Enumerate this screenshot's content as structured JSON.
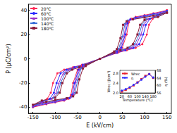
{
  "chart_data": [
    {
      "type": "line",
      "xlabel": "E (kV/cm)",
      "ylabel": "P (μC/cm²)",
      "xlim": [
        -160,
        160
      ],
      "ylim": [
        -45,
        45
      ],
      "xticks": [
        -150,
        -100,
        -50,
        0,
        50,
        100,
        150
      ],
      "yticks": [
        -40,
        -20,
        0,
        20,
        40
      ],
      "grid": false,
      "legend": "top-left",
      "series": [
        {
          "name": "20℃",
          "color": "#ff2a55",
          "marker": "circle",
          "x": [
            150,
            120,
            100,
            80,
            70,
            65,
            60,
            50,
            40,
            0,
            -40,
            -60,
            -80,
            -95,
            -105,
            -110,
            -118,
            -130,
            -150,
            -120,
            -100,
            -80,
            -70,
            -65,
            -60,
            -50,
            -40,
            0,
            40,
            60,
            80,
            95,
            105,
            110,
            118,
            130,
            150
          ],
          "values": [
            40,
            37.5,
            36,
            34.5,
            33,
            30,
            20,
            9,
            6,
            0,
            -5,
            -7,
            -9,
            -12,
            -20,
            -28,
            -33,
            -36,
            -40,
            -37.5,
            -36,
            -34.5,
            -33,
            -30,
            -20,
            -9,
            -6,
            0,
            5,
            7,
            9,
            12,
            20,
            28,
            33,
            36,
            40
          ]
        },
        {
          "name": "60℃",
          "color": "#2a2aff",
          "marker": "circle",
          "x": [
            150,
            120,
            100,
            80,
            68,
            62,
            57,
            48,
            38,
            0,
            -38,
            -57,
            -75,
            -88,
            -97,
            -103,
            -112,
            -130,
            -150,
            -120,
            -100,
            -80,
            -68,
            -62,
            -57,
            -48,
            -38,
            0,
            38,
            57,
            75,
            88,
            97,
            103,
            112,
            130,
            150
          ],
          "values": [
            39.5,
            37,
            35.5,
            34,
            32.5,
            29.5,
            20,
            9,
            6,
            0,
            -5,
            -7,
            -9,
            -12,
            -20,
            -28,
            -33,
            -36,
            -39.5,
            -37,
            -35.5,
            -34,
            -32.5,
            -29.5,
            -20,
            -9,
            -6,
            0,
            5,
            7,
            9,
            12,
            20,
            28,
            33,
            36,
            39.5
          ]
        },
        {
          "name": "100℃",
          "color": "#9b30c8",
          "marker": "triangle",
          "x": [
            150,
            120,
            100,
            78,
            66,
            59,
            54,
            45,
            36,
            0,
            -36,
            -54,
            -70,
            -82,
            -92,
            -98,
            -108,
            -130,
            -150,
            -120,
            -100,
            -78,
            -66,
            -59,
            -54,
            -45,
            -36,
            0,
            36,
            54,
            70,
            82,
            92,
            98,
            108,
            130,
            150
          ],
          "values": [
            39,
            36.5,
            35,
            33.5,
            32,
            29,
            19,
            8.5,
            6,
            0,
            -5,
            -7,
            -9,
            -12,
            -20,
            -28,
            -33,
            -35.5,
            -39,
            -36.5,
            -35,
            -33.5,
            -32,
            -29,
            -19,
            -8.5,
            -6,
            0,
            5,
            7,
            9,
            12,
            20,
            28,
            33,
            35.5,
            39
          ]
        },
        {
          "name": "140℃",
          "color": "#3a6fd8",
          "marker": "triangle_down",
          "x": [
            150,
            120,
            100,
            76,
            63,
            56,
            50,
            42,
            34,
            0,
            -34,
            -50,
            -66,
            -78,
            -88,
            -94,
            -104,
            -130,
            -150,
            -120,
            -100,
            -76,
            -63,
            -56,
            -50,
            -42,
            -34,
            0,
            34,
            50,
            66,
            78,
            88,
            94,
            104,
            130,
            150
          ],
          "values": [
            38.5,
            36,
            34.5,
            33,
            31.5,
            28.5,
            18,
            8,
            6,
            0,
            -5,
            -7,
            -9,
            -12,
            -20,
            -28,
            -32.5,
            -35,
            -38.5,
            -36,
            -34.5,
            -33,
            -31.5,
            -28.5,
            -18,
            -8,
            -6,
            0,
            5,
            7,
            9,
            12,
            20,
            28,
            32.5,
            35,
            38.5
          ]
        },
        {
          "name": "180℃",
          "color": "#8b1a3a",
          "marker": "square",
          "x": [
            150,
            120,
            100,
            74,
            60,
            52,
            46,
            38,
            32,
            0,
            -32,
            -46,
            -62,
            -74,
            -84,
            -90,
            -100,
            -130,
            -150,
            -120,
            -100,
            -74,
            -60,
            -52,
            -46,
            -38,
            -32,
            0,
            32,
            46,
            62,
            74,
            84,
            90,
            100,
            130,
            150
          ],
          "values": [
            38,
            35.5,
            34,
            32.5,
            31,
            28,
            17,
            8,
            6,
            0,
            -5,
            -7,
            -9,
            -12,
            -20,
            -28,
            -32,
            -34.5,
            -38,
            -35.5,
            -34,
            -32.5,
            -31,
            -28,
            -17,
            -8,
            -6,
            0,
            5,
            7,
            9,
            12,
            20,
            28,
            32,
            34.5,
            38
          ]
        }
      ]
    },
    {
      "type": "line",
      "xlabel": "Temperature (℃)",
      "ylabel": "Wrec (J/cm³)",
      "y2label": "η (%)",
      "xlim": [
        10,
        190
      ],
      "ylim": [
        2.0,
        2.9
      ],
      "y2lim": [
        56,
        68
      ],
      "xticks": [
        20,
        60,
        100,
        140,
        180
      ],
      "yticks": [
        {
          "value": 2,
          "label": "2.0"
        },
        2.4,
        2.8
      ],
      "y2ticks": [
        56,
        60,
        64,
        68
      ],
      "grid": false,
      "legend": "top-left",
      "x": [
        20,
        40,
        60,
        80,
        100,
        120,
        140,
        160,
        180
      ],
      "series": [
        {
          "name": "Wrec",
          "color": "#e8202a",
          "marker": "square",
          "values": [
            2.05,
            2.12,
            2.2,
            2.3,
            2.42,
            2.55,
            2.68,
            2.75,
            2.6
          ]
        },
        {
          "name": "η",
          "color": "#2a2aff",
          "marker": "circle",
          "axis": "y2",
          "values": [
            57.2,
            58,
            59,
            60.3,
            61.5,
            63,
            64.6,
            66,
            64.2
          ]
        }
      ]
    }
  ]
}
